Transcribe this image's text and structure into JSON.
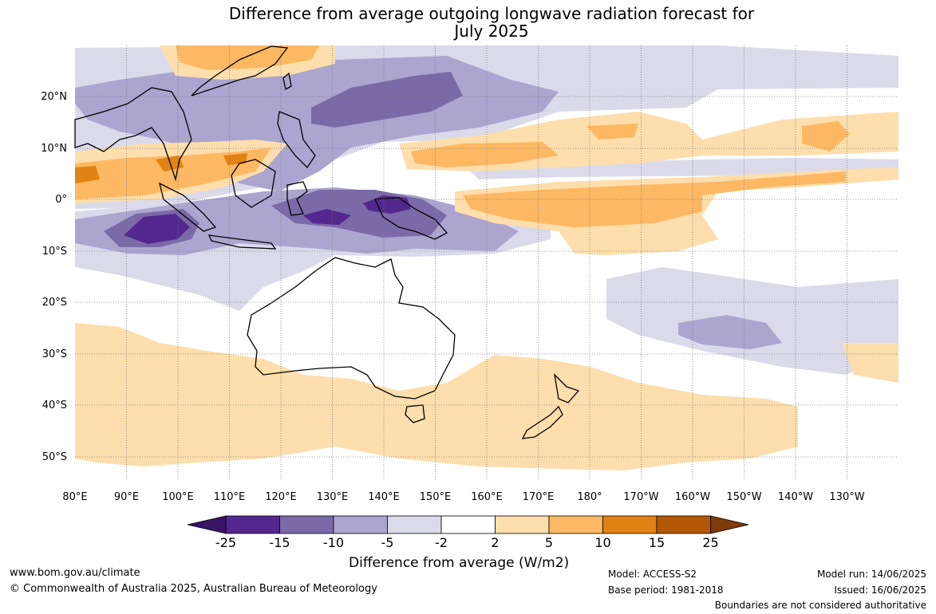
{
  "title": {
    "line1": "Difference from average outgoing longwave radiation forecast for",
    "line2": "July 2025"
  },
  "map": {
    "lat_labels": [
      "20°N",
      "10°N",
      "0°",
      "10°S",
      "20°S",
      "30°S",
      "40°S",
      "50°S"
    ],
    "lon_labels": [
      "80°E",
      "90°E",
      "100°E",
      "110°E",
      "120°E",
      "130°E",
      "140°E",
      "150°E",
      "160°E",
      "170°E",
      "180°",
      "170°W",
      "160°W",
      "150°W",
      "140°W",
      "130°W"
    ],
    "lat_range": [
      -55,
      30
    ],
    "lon_range": [
      80,
      240
    ],
    "grid": true
  },
  "legend": {
    "ticks": [
      "-25",
      "-15",
      "-10",
      "-5",
      "-2",
      "2",
      "5",
      "10",
      "15",
      "25"
    ],
    "colors": [
      "#3b1466",
      "#54278f",
      "#7a6aa8",
      "#aba5cf",
      "#dadaeb",
      "#ffffff",
      "#fddeac",
      "#fdb863",
      "#e08214",
      "#b35806",
      "#7f3b08"
    ],
    "label": "Difference from average (W/m2)"
  },
  "footer": {
    "url": "www.bom.gov.au/climate",
    "copyright": "© Commonwealth of Australia 2025, Australian Bureau of Meteorology",
    "model": "Model: ACCESS-S2",
    "base_period": "Base period: 1981-2018",
    "model_run": "Model run: 14/06/2025",
    "issued": "Issued: 16/06/2025",
    "boundaries_note": "Boundaries are not considered authoritative"
  }
}
